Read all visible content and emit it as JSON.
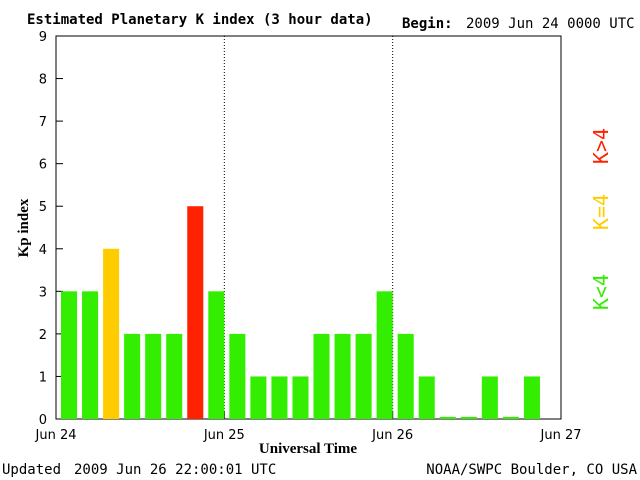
{
  "header": {
    "title": "Estimated Planetary K index (3 hour data)",
    "begin_label": "Begin:",
    "begin_value": "2009 Jun 24 0000 UTC"
  },
  "footer": {
    "updated_label": "Updated",
    "updated_value": "2009 Jun 26 22:00:01 UTC",
    "source": "NOAA/SWPC Boulder, CO USA"
  },
  "legend": {
    "items": [
      {
        "label": "K<4",
        "color": "#33ee00"
      },
      {
        "label": "K=4",
        "color": "#ffcc00"
      },
      {
        "label": "K>4",
        "color": "#ff2200"
      }
    ]
  },
  "colors": {
    "low": "#33ee00",
    "equal4": "#ffcc00",
    "high": "#ff2200"
  },
  "chart_data": {
    "type": "bar",
    "title": "Estimated Planetary K index (3 hour data)",
    "xlabel": "Universal Time",
    "ylabel": "Kp index",
    "ylim": [
      0,
      9
    ],
    "yticks": [
      0,
      1,
      2,
      3,
      4,
      5,
      6,
      7,
      8,
      9
    ],
    "xticks": [
      "Jun 24",
      "Jun 25",
      "Jun 26",
      "Jun 27"
    ],
    "day_separators": [
      "Jun 25",
      "Jun 26"
    ],
    "interval_hours": 3,
    "values": [
      3,
      3,
      4,
      2,
      2,
      2,
      5,
      3,
      2,
      1,
      1,
      1,
      2,
      2,
      2,
      3,
      2,
      1,
      0.05,
      0.05,
      1,
      0.05,
      1
    ],
    "legend": [
      "K<4",
      "K=4",
      "K>4"
    ],
    "grid": false
  }
}
